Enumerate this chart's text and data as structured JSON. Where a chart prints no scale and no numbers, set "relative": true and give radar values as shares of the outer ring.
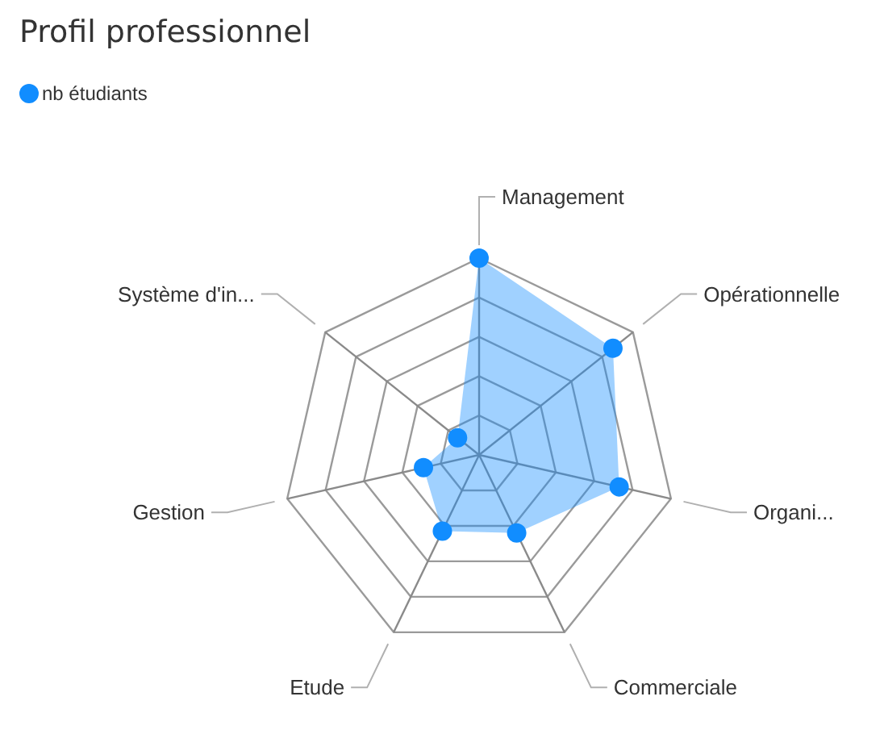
{
  "chart_data": {
    "type": "radar",
    "title": "Profil professionnel",
    "relative": true,
    "categories": [
      "Management",
      "Opérationnelle",
      "Organi...",
      "Commerciale",
      "Etude",
      "Gestion",
      "Système d'in..."
    ],
    "series": [
      {
        "name": "nb étudiants",
        "color": "#118dff",
        "values": [
          1.0,
          0.87,
          0.73,
          0.44,
          0.43,
          0.29,
          0.14
        ]
      }
    ],
    "legend": "top left",
    "marker": "circle",
    "grid": true
  }
}
